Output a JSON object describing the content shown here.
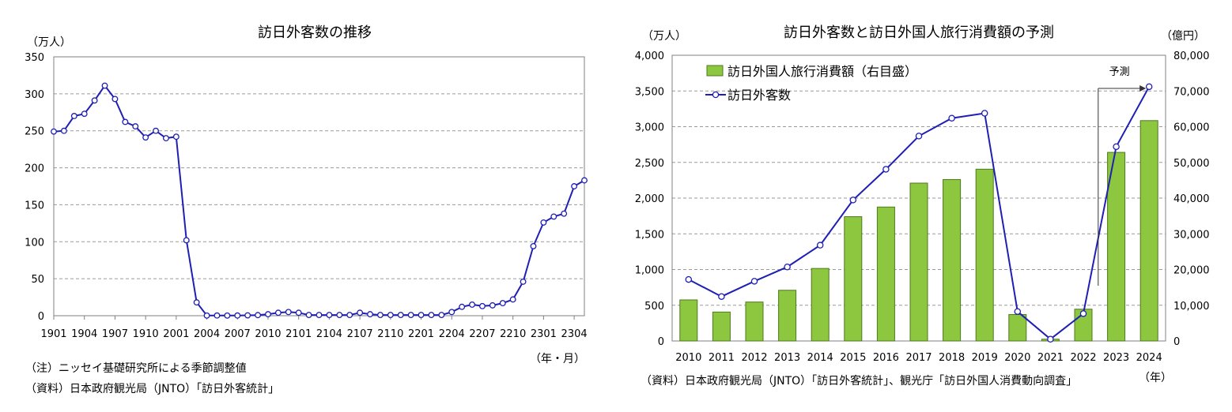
{
  "chart_data": [
    {
      "type": "line",
      "title": "訪日外客数の推移",
      "yunit": "（万人）",
      "xunit": "（年・月）",
      "ylim": [
        0,
        350
      ],
      "yticks": [
        0,
        50,
        100,
        150,
        200,
        250,
        300,
        350
      ],
      "xtick_labels": [
        "1901",
        "1904",
        "1907",
        "1910",
        "2001",
        "2004",
        "2007",
        "2010",
        "2101",
        "2104",
        "2107",
        "2110",
        "2201",
        "2204",
        "2207",
        "2210",
        "2301",
        "2304"
      ],
      "grid": true,
      "color": "#1f1fb4",
      "series": [
        {
          "values": [
            249,
            250,
            270,
            273,
            291,
            311,
            293,
            262,
            256,
            241,
            250,
            240,
            242,
            102,
            18,
            0.2,
            0.3,
            0.2,
            0.3,
            0.5,
            0.8,
            2,
            4,
            5,
            4,
            1,
            1,
            1,
            1,
            1,
            4,
            2,
            1,
            1,
            1,
            1,
            1,
            1,
            1,
            5,
            12,
            15,
            13,
            14,
            17,
            22,
            46,
            94,
            126,
            134,
            138,
            175,
            183
          ]
        }
      ]
    },
    {
      "type": "bar",
      "title": "訪日外客数と訪日外国人旅行消費額の予測",
      "yunit_left": "（万人）",
      "yunit_right": "（億円）",
      "xunit": "（年）",
      "categories": [
        "2010",
        "2011",
        "2012",
        "2013",
        "2014",
        "2015",
        "2016",
        "2017",
        "2018",
        "2019",
        "2020",
        "2021",
        "2022",
        "2023",
        "2024"
      ],
      "ylim_left": [
        0,
        4000
      ],
      "ylim_right": [
        0,
        80000
      ],
      "yticks_left": [
        "0",
        "500",
        "1,000",
        "1,500",
        "2,000",
        "2,500",
        "3,000",
        "3,500",
        "4,000"
      ],
      "yticks_right": [
        "0",
        "10,000",
        "20,000",
        "30,000",
        "40,000",
        "50,000",
        "60,000",
        "70,000",
        "80,000"
      ],
      "grid": true,
      "legend_position": "top-left",
      "annotation": "予測",
      "series": [
        {
          "name": "訪日外国人旅行消費額（右目盛）",
          "kind": "bar",
          "axis": "right",
          "color": "#8dc63f",
          "values": [
            11500,
            8100,
            10900,
            14200,
            20300,
            34800,
            37500,
            44200,
            45200,
            48100,
            7400,
            500,
            8900,
            52800,
            61700
          ]
        },
        {
          "name": "訪日外客数",
          "kind": "line",
          "axis": "left",
          "color": "#1f1fb4",
          "values": [
            861,
            622,
            836,
            1036,
            1341,
            1974,
            2404,
            2869,
            3119,
            3188,
            412,
            25,
            383,
            2720,
            3560
          ]
        }
      ]
    }
  ],
  "notes": {
    "left_note1": "（注）ニッセイ基礎研究所による季節調整値",
    "left_note2": "（資料）日本政府観光局（JNTO）「訪日外客統計」",
    "right_note": "（資料）日本政府観光局（JNTO）「訪日外客統計」、観光庁「訪日外国人消費動向調査」"
  }
}
